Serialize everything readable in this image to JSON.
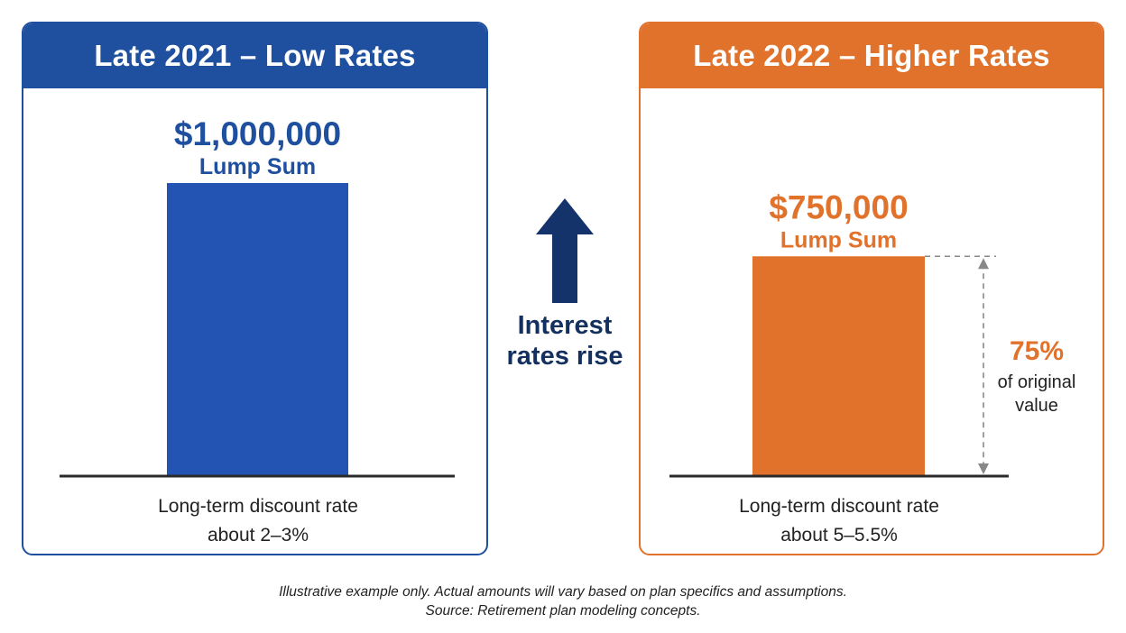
{
  "colors": {
    "blue": "#2354b3",
    "blue_dark": "#1f4f9f",
    "orange": "#e0722b",
    "navy": "#15336b",
    "axis": "#2a2a2a",
    "text": "#222222"
  },
  "middle": {
    "line1": "Interest",
    "line2": "rates rise",
    "icon": "up-arrow-icon"
  },
  "footer": {
    "line1": "Illustrative example only. Actual amounts will vary based on plan specifics and assumptions.",
    "line2": "Source: Retirement plan modeling concepts."
  },
  "chart_data": [
    {
      "type": "bar",
      "title": "Late 2021 – Low Rates",
      "categories": [
        "Lump Sum"
      ],
      "values": [
        1000000
      ],
      "value_label": "$1,000,000",
      "bar_label": "Lump Sum",
      "ylim": [
        0,
        1000000
      ],
      "caption_line1": "Long-term discount rate",
      "caption_line2": "about 2–3%",
      "color": "#2354b3"
    },
    {
      "type": "bar",
      "title": "Late 2022 – Higher Rates",
      "categories": [
        "Lump Sum"
      ],
      "values": [
        750000
      ],
      "value_label": "$750,000",
      "bar_label": "Lump Sum",
      "ylim": [
        0,
        1000000
      ],
      "caption_line1": "Long-term discount rate",
      "caption_line2": "about 5–5.5%",
      "annotation_value": "75%",
      "annotation_line1": "of original",
      "annotation_line2": "value",
      "color": "#e0722b"
    }
  ]
}
